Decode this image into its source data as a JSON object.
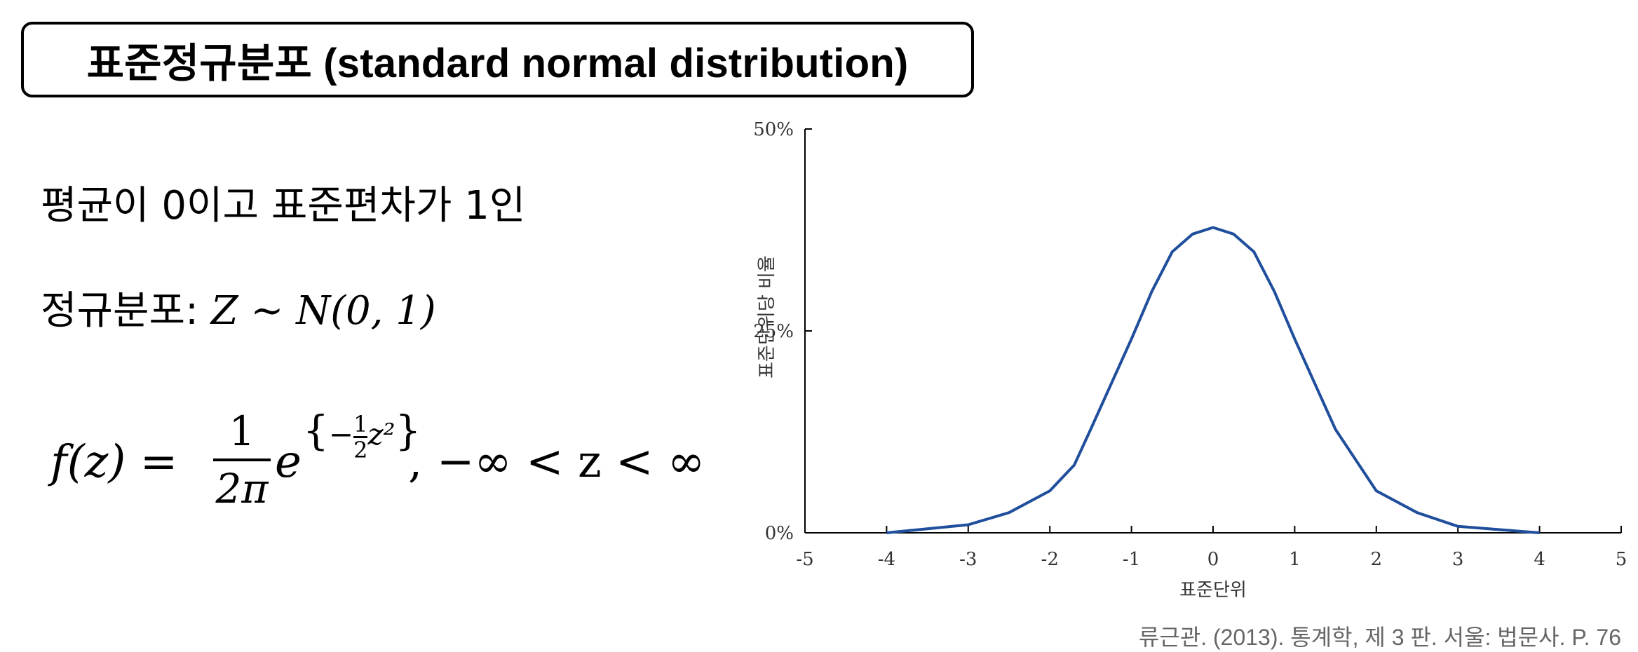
{
  "title": "표준정규분포 (standard normal distribution)",
  "line1": "평균이 0이고 표준편차가 1인",
  "line2_prefix": "정규분포:",
  "line2_formula": "Z ~ N(0, 1)",
  "formula": {
    "lhs": "f(z) =",
    "numerator": "1",
    "denominator": "2π",
    "base": "e",
    "exp_minus": "−",
    "exp_num": "1",
    "exp_den": "2",
    "exp_var": "z²",
    "tail": ", −∞ < z < ∞"
  },
  "caption": "류근관. (2013). 통계학, 제 3 판. 서울: 법문사. P. 76",
  "chart_data": {
    "type": "line",
    "ylabel": "표준단위당 비율",
    "xlabel": "표준단위",
    "xlim": [
      -5,
      5
    ],
    "ylim": [
      0,
      50
    ],
    "xticks": [
      "-5",
      "-4",
      "-3",
      "-2",
      "-1",
      "0",
      "1",
      "2",
      "3",
      "4",
      "5"
    ],
    "yticks": [
      {
        "value": 0,
        "label": "0%"
      },
      {
        "value": 25,
        "label": "25%"
      },
      {
        "value": 50,
        "label": "50%"
      }
    ],
    "line_color": "#1f4e9c",
    "series": [
      {
        "x": [
          -4,
          -3.5,
          -3,
          -2.5,
          -2,
          -1.7,
          -1.5,
          -1,
          -0.75,
          -0.5,
          -0.25,
          0,
          0.25,
          0.5,
          0.75,
          1,
          1.5,
          2,
          2.5,
          3,
          3.5,
          4
        ],
        "values": [
          0,
          0.5,
          1.0,
          2.5,
          5.2,
          8.4,
          12.8,
          24.0,
          29.9,
          34.8,
          37.0,
          37.8,
          37.0,
          34.8,
          29.9,
          24.0,
          12.8,
          5.2,
          2.5,
          0.8,
          0.4,
          0
        ]
      }
    ]
  }
}
